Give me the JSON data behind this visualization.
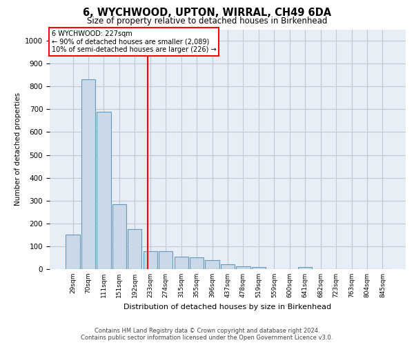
{
  "title": "6, WYCHWOOD, UPTON, WIRRAL, CH49 6DA",
  "subtitle": "Size of property relative to detached houses in Birkenhead",
  "xlabel": "Distribution of detached houses by size in Birkenhead",
  "ylabel": "Number of detached properties",
  "categories": [
    "29sqm",
    "70sqm",
    "111sqm",
    "151sqm",
    "192sqm",
    "233sqm",
    "274sqm",
    "315sqm",
    "355sqm",
    "396sqm",
    "437sqm",
    "478sqm",
    "519sqm",
    "559sqm",
    "600sqm",
    "641sqm",
    "682sqm",
    "723sqm",
    "763sqm",
    "804sqm",
    "845sqm"
  ],
  "values": [
    150,
    830,
    690,
    283,
    175,
    78,
    78,
    53,
    50,
    40,
    22,
    12,
    8,
    0,
    0,
    8,
    0,
    0,
    0,
    0,
    0
  ],
  "bar_color": "#c9d9e8",
  "bar_edge_color": "#6699bb",
  "annotation_line1": "6 WYCHWOOD: 227sqm",
  "annotation_line2": "← 90% of detached houses are smaller (2,089)",
  "annotation_line3": "10% of semi-detached houses are larger (226) →",
  "ylim": [
    0,
    1050
  ],
  "yticks": [
    0,
    100,
    200,
    300,
    400,
    500,
    600,
    700,
    800,
    900,
    1000
  ],
  "grid_color": "#c0c8d8",
  "background_color": "#e8eef5",
  "red_line_index": 4.85,
  "footer1": "Contains HM Land Registry data © Crown copyright and database right 2024.",
  "footer2": "Contains public sector information licensed under the Open Government Licence v3.0."
}
